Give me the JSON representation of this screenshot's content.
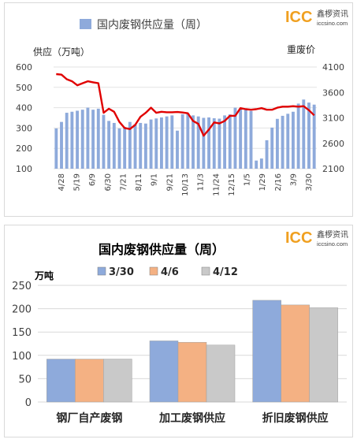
{
  "logo": {
    "brand": "ICC",
    "brand_cn": "鑫椤资讯",
    "url": "iccsino.com"
  },
  "chart_data": [
    {
      "type": "bar+line",
      "title": "",
      "legend": [
        {
          "name": "国内废钢供应量（周）",
          "color": "#8eaadb"
        }
      ],
      "ylabel": "供应（万吨）",
      "y2label": "重废价",
      "ylim": [
        100,
        600
      ],
      "yticks": [
        100,
        200,
        300,
        400,
        500,
        600
      ],
      "y2lim": [
        2100,
        4100
      ],
      "y2ticks": [
        2100,
        2600,
        3100,
        3600,
        4100
      ],
      "xtick_labels": [
        "4/28",
        "5/19",
        "6/9",
        "6/30",
        "7/21",
        "8/11",
        "9/1",
        "9/21",
        "10/13",
        "11/3",
        "11/24",
        "12/15",
        "1/5",
        "1/29",
        "2/16",
        "3/9",
        "3/30"
      ],
      "bar_series": {
        "name": "国内废钢供应量（周）",
        "color": "#8eaadb",
        "values": [
          298,
          330,
          375,
          380,
          385,
          390,
          400,
          390,
          395,
          365,
          335,
          325,
          298,
          305,
          330,
          318,
          325,
          322,
          342,
          347,
          352,
          357,
          362,
          287,
          368,
          373,
          362,
          357,
          350,
          352,
          348,
          346,
          362,
          367,
          400,
          397,
          392,
          384,
          140,
          150,
          240,
          302,
          345,
          360,
          370,
          380,
          420,
          440,
          425,
          415
        ]
      },
      "line_series": {
        "name": "重废价",
        "color": "#e00000",
        "values": [
          3960,
          3950,
          3860,
          3820,
          3740,
          3780,
          3820,
          3800,
          3780,
          3200,
          3280,
          3220,
          3020,
          2900,
          2880,
          2960,
          3120,
          3200,
          3300,
          3200,
          3220,
          3210,
          3210,
          3215,
          3205,
          3190,
          3040,
          2980,
          2750,
          2870,
          3010,
          2990,
          3040,
          3140,
          3140,
          3290,
          3270,
          3260,
          3270,
          3290,
          3260,
          3260,
          3300,
          3320,
          3320,
          3330,
          3320,
          3330,
          3250,
          3150
        ]
      }
    },
    {
      "type": "bar",
      "title": "国内废钢供应量（周）",
      "ylabel": "万吨",
      "ylim": [
        0,
        250
      ],
      "yticks": [
        0,
        50,
        100,
        150,
        200,
        250
      ],
      "categories": [
        "钢厂自产废钢",
        "加工废钢供应",
        "折旧废钢供应"
      ],
      "series": [
        {
          "name": "3/30",
          "color": "#8eaadb",
          "values": [
            92,
            131,
            218
          ]
        },
        {
          "name": "4/6",
          "color": "#f4b183",
          "values": [
            92,
            128,
            208
          ]
        },
        {
          "name": "4/12",
          "color": "#c9c9c9",
          "values": [
            92,
            122,
            202
          ]
        }
      ]
    }
  ]
}
